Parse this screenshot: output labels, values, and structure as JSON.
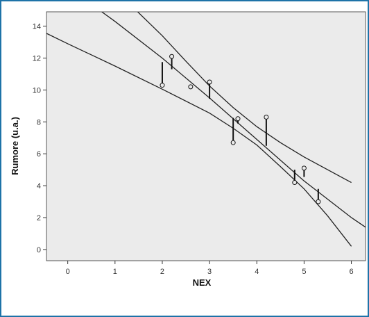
{
  "chart_data": {
    "type": "scatter",
    "title": "",
    "xlabel": "NEX",
    "ylabel": "Rumore (u.a.)",
    "xlim": [
      -0.45,
      6.3
    ],
    "ylim": [
      -0.7,
      14.9
    ],
    "x_ticks": [
      0,
      1,
      2,
      3,
      4,
      5,
      6
    ],
    "y_ticks": [
      0,
      2,
      4,
      6,
      8,
      10,
      12,
      14
    ],
    "grid": false,
    "plot_background": "#ebebeb",
    "line_color": "#222222",
    "series": [
      {
        "type": "scatter",
        "points": [
          {
            "x": 2.0,
            "y": 10.3
          },
          {
            "x": 2.2,
            "y": 12.1
          },
          {
            "x": 2.6,
            "y": 10.2
          },
          {
            "x": 3.0,
            "y": 10.5
          },
          {
            "x": 3.5,
            "y": 6.7
          },
          {
            "x": 3.6,
            "y": 8.2
          },
          {
            "x": 4.2,
            "y": 8.3
          },
          {
            "x": 4.8,
            "y": 4.2
          },
          {
            "x": 5.0,
            "y": 5.1
          },
          {
            "x": 5.3,
            "y": 3.0
          }
        ]
      },
      {
        "type": "residual-segments",
        "segments": [
          {
            "x": 2.0,
            "y1": 10.3,
            "y2": 11.75
          },
          {
            "x": 2.2,
            "y1": 12.1,
            "y2": 11.3
          },
          {
            "x": 3.0,
            "y1": 10.5,
            "y2": 9.45
          },
          {
            "x": 3.5,
            "y1": 6.7,
            "y2": 8.25
          },
          {
            "x": 3.6,
            "y1": 8.2,
            "y2": 7.9
          },
          {
            "x": 4.2,
            "y1": 8.3,
            "y2": 6.5
          },
          {
            "x": 4.8,
            "y1": 4.2,
            "y2": 5.0
          },
          {
            "x": 5.0,
            "y1": 5.1,
            "y2": 4.55
          },
          {
            "x": 5.3,
            "y1": 3.0,
            "y2": 3.8
          }
        ]
      },
      {
        "type": "line",
        "role": "fit",
        "points": [
          {
            "x": 0.72,
            "y": 14.9
          },
          {
            "x": 1.0,
            "y": 14.3
          },
          {
            "x": 2.0,
            "y": 12.0
          },
          {
            "x": 3.0,
            "y": 9.5
          },
          {
            "x": 4.0,
            "y": 6.9
          },
          {
            "x": 5.0,
            "y": 4.3
          },
          {
            "x": 6.0,
            "y": 2.0
          },
          {
            "x": 6.3,
            "y": 1.4
          }
        ]
      },
      {
        "type": "line",
        "role": "upper-band",
        "points": [
          {
            "x": 1.48,
            "y": 14.9
          },
          {
            "x": 2.0,
            "y": 13.4
          },
          {
            "x": 2.5,
            "y": 11.8
          },
          {
            "x": 3.0,
            "y": 10.25
          },
          {
            "x": 3.5,
            "y": 8.9
          },
          {
            "x": 4.0,
            "y": 7.7
          },
          {
            "x": 4.5,
            "y": 6.7
          },
          {
            "x": 5.0,
            "y": 5.8
          },
          {
            "x": 5.5,
            "y": 5.0
          },
          {
            "x": 6.0,
            "y": 4.2
          }
        ]
      },
      {
        "type": "line",
        "role": "lower-band",
        "points": [
          {
            "x": -0.45,
            "y": 13.55
          },
          {
            "x": 0.0,
            "y": 12.9
          },
          {
            "x": 1.0,
            "y": 11.5
          },
          {
            "x": 2.0,
            "y": 10.05
          },
          {
            "x": 3.0,
            "y": 8.55
          },
          {
            "x": 3.5,
            "y": 7.6
          },
          {
            "x": 4.0,
            "y": 6.55
          },
          {
            "x": 4.5,
            "y": 5.2
          },
          {
            "x": 5.0,
            "y": 3.8
          },
          {
            "x": 5.5,
            "y": 2.1
          },
          {
            "x": 6.0,
            "y": 0.2
          }
        ]
      }
    ]
  }
}
